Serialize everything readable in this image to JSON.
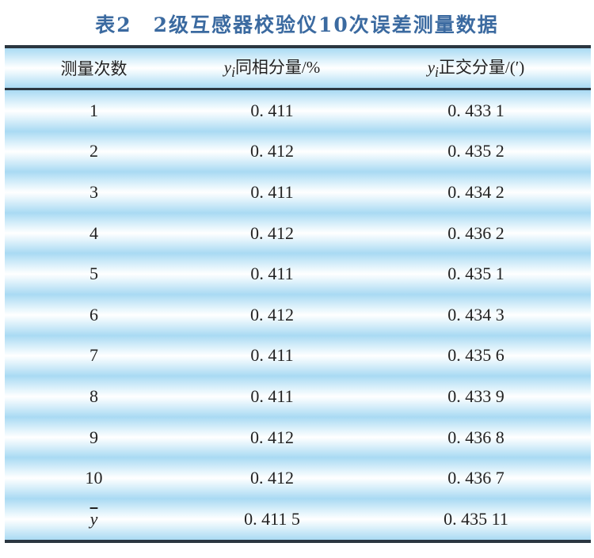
{
  "title": "表2　2级互感器校验仪10次误差测量数据",
  "table": {
    "headers": [
      "测量次数",
      "同相分量/%",
      "正交分量/(′)"
    ],
    "header_symbol": "y",
    "header_subscript": "i",
    "rows": [
      [
        "1",
        "0. 411",
        "0. 433 1"
      ],
      [
        "2",
        "0. 412",
        "0. 435 2"
      ],
      [
        "3",
        "0. 411",
        "0. 434 2"
      ],
      [
        "4",
        "0. 412",
        "0. 436 2"
      ],
      [
        "5",
        "0. 411",
        "0. 435 1"
      ],
      [
        "6",
        "0. 412",
        "0. 434 3"
      ],
      [
        "7",
        "0. 411",
        "0. 435 6"
      ],
      [
        "8",
        "0. 411",
        "0. 433 9"
      ],
      [
        "9",
        "0. 412",
        "0. 436 8"
      ],
      [
        "10",
        "0. 412",
        "0. 436 7"
      ]
    ],
    "mean_row": [
      "y",
      "0. 411 5",
      "0. 435 11"
    ]
  },
  "colors": {
    "title": "#3b6aa0",
    "row_band": "#a9daf3",
    "rule": "#2b3640"
  }
}
